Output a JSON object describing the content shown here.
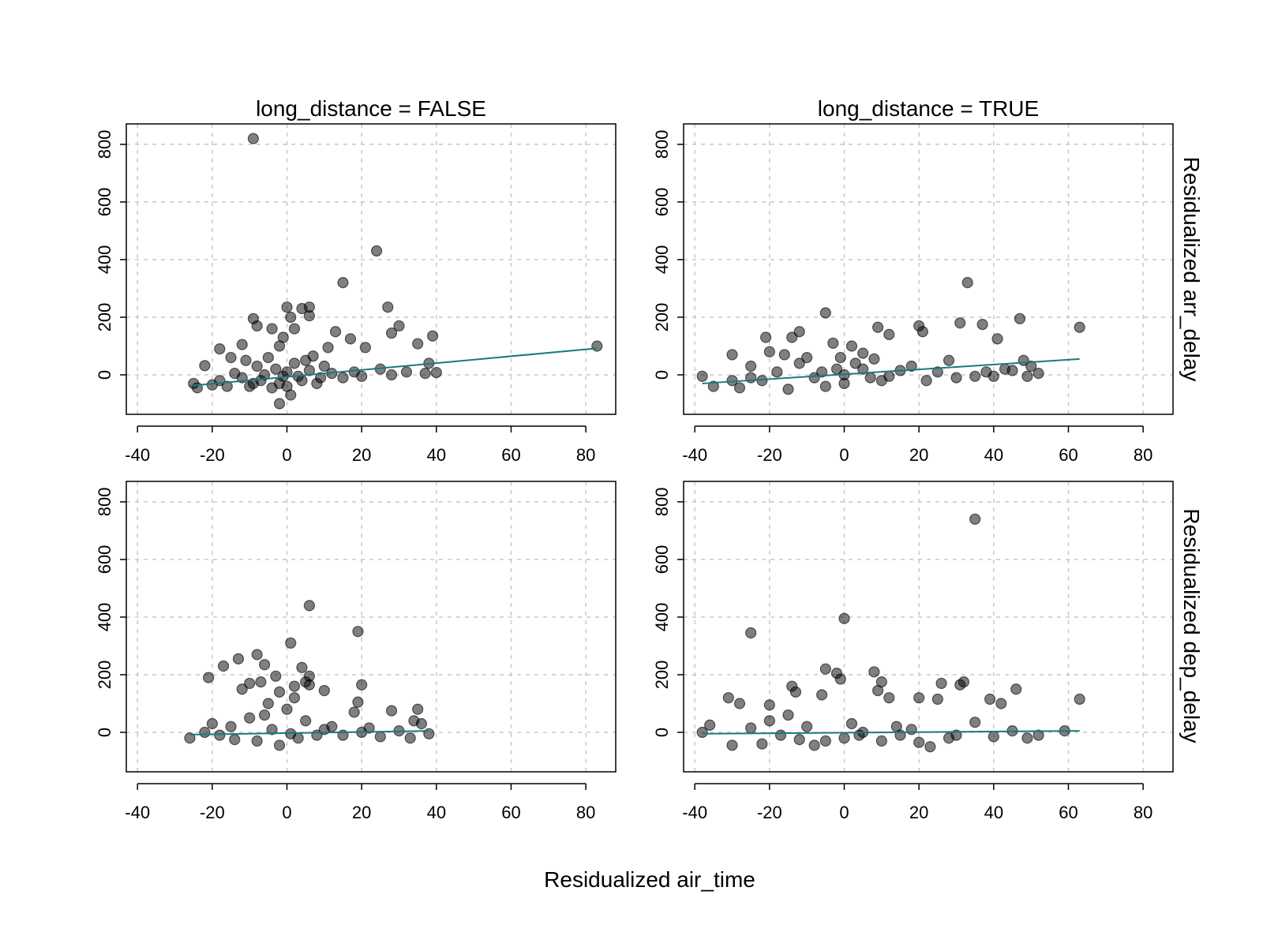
{
  "chart_data": {
    "type": "scatter",
    "xlabel": "Residualized air_time",
    "x_ticks": [
      "-40",
      "-20",
      "0",
      "20",
      "40",
      "60",
      "80"
    ],
    "y_ticks": [
      "0",
      "200",
      "400",
      "600",
      "800"
    ],
    "xlim": [
      -43,
      88
    ],
    "ylim": [
      -137,
      871
    ],
    "grid": true,
    "colors": {
      "points": "#000000",
      "fit_line": "#1a7a7a",
      "grid": "#c8c8c8"
    },
    "column_titles": [
      "long_distance = FALSE",
      "long_distance = TRUE"
    ],
    "row_labels": [
      "Residualized arr_delay",
      "Residualized dep_delay"
    ],
    "panels": [
      {
        "row": 0,
        "col": 0,
        "fit": [
          [
            -26,
            -38
          ],
          [
            83,
            92
          ]
        ],
        "points": [
          [
            -9,
            820
          ],
          [
            24,
            430
          ],
          [
            15,
            320
          ],
          [
            -9,
            195
          ],
          [
            -8,
            170
          ],
          [
            0,
            235
          ],
          [
            4,
            230
          ],
          [
            6,
            235
          ],
          [
            1,
            200
          ],
          [
            6,
            205
          ],
          [
            27,
            235
          ],
          [
            30,
            170
          ],
          [
            28,
            145
          ],
          [
            13,
            150
          ],
          [
            17,
            125
          ],
          [
            35,
            108
          ],
          [
            39,
            135
          ],
          [
            83,
            100
          ],
          [
            -18,
            90
          ],
          [
            -12,
            105
          ],
          [
            -2,
            100
          ],
          [
            2,
            160
          ],
          [
            -4,
            160
          ],
          [
            -1,
            130
          ],
          [
            11,
            95
          ],
          [
            21,
            95
          ],
          [
            -22,
            32
          ],
          [
            -24,
            -45
          ],
          [
            -2,
            -100
          ],
          [
            1,
            -70
          ],
          [
            38,
            40
          ],
          [
            37,
            5
          ],
          [
            40,
            8
          ],
          [
            25,
            20
          ],
          [
            18,
            10
          ],
          [
            10,
            30
          ],
          [
            -15,
            60
          ],
          [
            -5,
            60
          ],
          [
            5,
            50
          ],
          [
            15,
            -10
          ],
          [
            -20,
            -35
          ],
          [
            -10,
            -40
          ],
          [
            0,
            -40
          ],
          [
            8,
            -30
          ],
          [
            -25,
            -30
          ],
          [
            -18,
            -20
          ],
          [
            -12,
            -10
          ],
          [
            -6,
            0
          ],
          [
            -3,
            20
          ],
          [
            0,
            10
          ],
          [
            3,
            -5
          ],
          [
            6,
            15
          ],
          [
            9,
            -10
          ],
          [
            12,
            5
          ],
          [
            -8,
            30
          ],
          [
            -14,
            5
          ],
          [
            -16,
            -40
          ],
          [
            -2,
            -30
          ],
          [
            4,
            -20
          ],
          [
            20,
            -5
          ],
          [
            28,
            0
          ],
          [
            32,
            10
          ],
          [
            -7,
            -20
          ],
          [
            -1,
            -5
          ],
          [
            2,
            40
          ],
          [
            -11,
            50
          ],
          [
            7,
            65
          ],
          [
            -4,
            -45
          ],
          [
            -9,
            -30
          ]
        ]
      },
      {
        "row": 0,
        "col": 1,
        "fit": [
          [
            -38,
            -30
          ],
          [
            63,
            55
          ]
        ],
        "points": [
          [
            33,
            320
          ],
          [
            -5,
            215
          ],
          [
            47,
            195
          ],
          [
            -21,
            130
          ],
          [
            -12,
            150
          ],
          [
            -14,
            130
          ],
          [
            9,
            165
          ],
          [
            20,
            170
          ],
          [
            21,
            150
          ],
          [
            31,
            180
          ],
          [
            37,
            175
          ],
          [
            41,
            125
          ],
          [
            12,
            140
          ],
          [
            2,
            100
          ],
          [
            -3,
            110
          ],
          [
            5,
            75
          ],
          [
            -30,
            70
          ],
          [
            -38,
            -5
          ],
          [
            -35,
            -40
          ],
          [
            -28,
            -45
          ],
          [
            -25,
            30
          ],
          [
            -20,
            80
          ],
          [
            -10,
            60
          ],
          [
            -15,
            -50
          ],
          [
            -5,
            -40
          ],
          [
            0,
            -30
          ],
          [
            10,
            -20
          ],
          [
            25,
            10
          ],
          [
            35,
            -5
          ],
          [
            43,
            20
          ],
          [
            48,
            50
          ],
          [
            50,
            30
          ],
          [
            52,
            5
          ],
          [
            49,
            -5
          ],
          [
            63,
            165
          ],
          [
            -22,
            -20
          ],
          [
            -18,
            10
          ],
          [
            -8,
            -10
          ],
          [
            -2,
            20
          ],
          [
            3,
            40
          ],
          [
            7,
            -10
          ],
          [
            15,
            15
          ],
          [
            18,
            30
          ],
          [
            28,
            50
          ],
          [
            30,
            -10
          ],
          [
            38,
            10
          ],
          [
            -30,
            -20
          ],
          [
            -12,
            40
          ],
          [
            -6,
            10
          ],
          [
            0,
            0
          ],
          [
            5,
            20
          ],
          [
            12,
            -5
          ],
          [
            22,
            -20
          ],
          [
            -25,
            -10
          ],
          [
            40,
            -5
          ],
          [
            45,
            15
          ],
          [
            -16,
            70
          ],
          [
            -1,
            60
          ],
          [
            8,
            55
          ]
        ]
      },
      {
        "row": 1,
        "col": 0,
        "fit": [
          [
            -26,
            -8
          ],
          [
            38,
            5
          ]
        ],
        "points": [
          [
            6,
            440
          ],
          [
            19,
            350
          ],
          [
            1,
            310
          ],
          [
            -8,
            270
          ],
          [
            -13,
            255
          ],
          [
            -6,
            235
          ],
          [
            -17,
            230
          ],
          [
            -21,
            190
          ],
          [
            4,
            225
          ],
          [
            6,
            195
          ],
          [
            5,
            175
          ],
          [
            6,
            165
          ],
          [
            2,
            160
          ],
          [
            -3,
            195
          ],
          [
            -10,
            170
          ],
          [
            -7,
            175
          ],
          [
            20,
            165
          ],
          [
            -2,
            140
          ],
          [
            -12,
            150
          ],
          [
            10,
            145
          ],
          [
            19,
            105
          ],
          [
            18,
            70
          ],
          [
            28,
            75
          ],
          [
            35,
            80
          ],
          [
            -20,
            30
          ],
          [
            -22,
            0
          ],
          [
            -26,
            -20
          ],
          [
            -15,
            20
          ],
          [
            -10,
            50
          ],
          [
            -5,
            100
          ],
          [
            0,
            80
          ],
          [
            5,
            40
          ],
          [
            10,
            10
          ],
          [
            15,
            -10
          ],
          [
            20,
            0
          ],
          [
            25,
            -15
          ],
          [
            30,
            5
          ],
          [
            33,
            -20
          ],
          [
            38,
            -5
          ],
          [
            36,
            30
          ],
          [
            34,
            40
          ],
          [
            -18,
            -10
          ],
          [
            -8,
            -30
          ],
          [
            -2,
            -45
          ],
          [
            3,
            -20
          ],
          [
            8,
            -10
          ],
          [
            12,
            20
          ],
          [
            -4,
            10
          ],
          [
            1,
            -5
          ],
          [
            -14,
            -25
          ],
          [
            22,
            15
          ],
          [
            -6,
            60
          ],
          [
            2,
            120
          ]
        ]
      },
      {
        "row": 1,
        "col": 1,
        "fit": [
          [
            -38,
            -5
          ],
          [
            63,
            5
          ]
        ],
        "points": [
          [
            35,
            740
          ],
          [
            -25,
            345
          ],
          [
            0,
            395
          ],
          [
            -5,
            220
          ],
          [
            -2,
            205
          ],
          [
            -1,
            185
          ],
          [
            8,
            210
          ],
          [
            10,
            175
          ],
          [
            9,
            145
          ],
          [
            12,
            120
          ],
          [
            20,
            120
          ],
          [
            26,
            170
          ],
          [
            25,
            115
          ],
          [
            31,
            165
          ],
          [
            32,
            175
          ],
          [
            39,
            115
          ],
          [
            42,
            100
          ],
          [
            46,
            150
          ],
          [
            63,
            115
          ],
          [
            -31,
            120
          ],
          [
            -28,
            100
          ],
          [
            -20,
            95
          ],
          [
            -14,
            160
          ],
          [
            -13,
            140
          ],
          [
            -6,
            130
          ],
          [
            -36,
            25
          ],
          [
            -38,
            0
          ],
          [
            -30,
            -45
          ],
          [
            -25,
            15
          ],
          [
            -20,
            40
          ],
          [
            -15,
            60
          ],
          [
            -10,
            20
          ],
          [
            -5,
            -30
          ],
          [
            0,
            -20
          ],
          [
            5,
            0
          ],
          [
            15,
            -10
          ],
          [
            20,
            -35
          ],
          [
            30,
            -10
          ],
          [
            40,
            -15
          ],
          [
            45,
            5
          ],
          [
            49,
            -20
          ],
          [
            52,
            -10
          ],
          [
            59,
            5
          ],
          [
            -22,
            -40
          ],
          [
            -17,
            -10
          ],
          [
            -8,
            -45
          ],
          [
            2,
            30
          ],
          [
            10,
            -30
          ],
          [
            18,
            10
          ],
          [
            28,
            -20
          ],
          [
            35,
            35
          ],
          [
            23,
            -50
          ],
          [
            -12,
            -25
          ],
          [
            4,
            -10
          ],
          [
            14,
            20
          ]
        ]
      }
    ]
  }
}
